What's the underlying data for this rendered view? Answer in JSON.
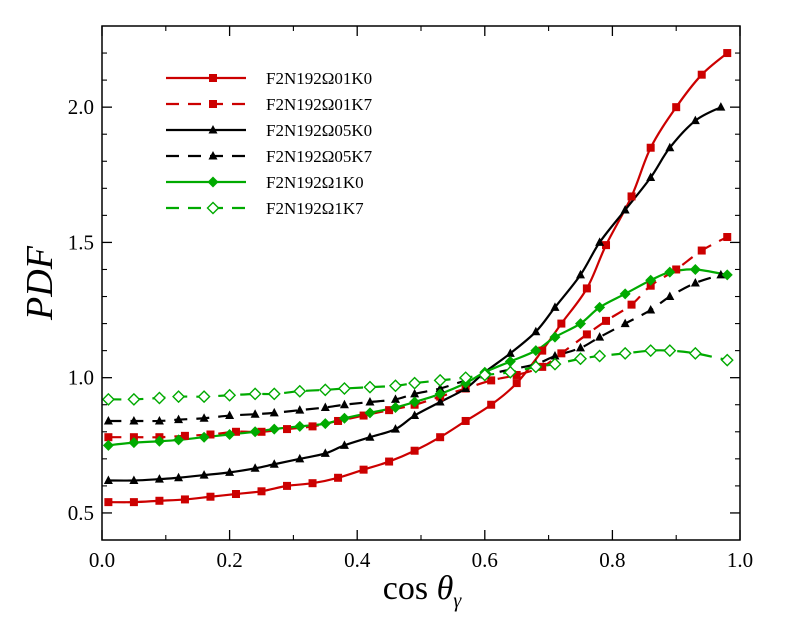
{
  "chart_data": {
    "type": "line",
    "xlabel": "cos θγ",
    "xlabel_main": "cos ",
    "xlabel_theta": "θ",
    "xlabel_sub": "γ",
    "ylabel": "PDF",
    "xlim": [
      0.0,
      1.0
    ],
    "ylim": [
      0.4,
      2.3
    ],
    "x_ticks": [
      0.0,
      0.2,
      0.4,
      0.6,
      0.8,
      1.0
    ],
    "x_tick_labels": [
      "0.0",
      "0.2",
      "0.4",
      "0.6",
      "0.8",
      "1.0"
    ],
    "y_ticks": [
      0.5,
      1.0,
      1.5,
      2.0
    ],
    "y_tick_labels": [
      "0.5",
      "1.0",
      "1.5",
      "2.0"
    ],
    "legend_position": "top-left",
    "series": [
      {
        "name": "F2N192Ω01K0",
        "color": "#cc0000",
        "dash": "solid",
        "marker": "square-filled",
        "x": [
          0.01,
          0.05,
          0.09,
          0.13,
          0.17,
          0.21,
          0.25,
          0.29,
          0.33,
          0.37,
          0.41,
          0.45,
          0.49,
          0.53,
          0.57,
          0.61,
          0.65,
          0.69,
          0.72,
          0.76,
          0.79,
          0.83,
          0.86,
          0.9,
          0.94,
          0.98
        ],
        "values": [
          0.54,
          0.54,
          0.545,
          0.55,
          0.56,
          0.57,
          0.58,
          0.6,
          0.61,
          0.63,
          0.66,
          0.69,
          0.73,
          0.78,
          0.84,
          0.9,
          0.98,
          1.1,
          1.2,
          1.33,
          1.49,
          1.67,
          1.85,
          2.0,
          2.12,
          2.2
        ]
      },
      {
        "name": "F2N192Ω01K7",
        "color": "#cc0000",
        "dash": "dashed",
        "marker": "square-filled",
        "x": [
          0.01,
          0.05,
          0.09,
          0.13,
          0.17,
          0.21,
          0.25,
          0.29,
          0.33,
          0.37,
          0.41,
          0.45,
          0.49,
          0.53,
          0.57,
          0.61,
          0.65,
          0.69,
          0.72,
          0.76,
          0.79,
          0.83,
          0.86,
          0.9,
          0.94,
          0.98
        ],
        "values": [
          0.78,
          0.78,
          0.78,
          0.785,
          0.79,
          0.8,
          0.8,
          0.81,
          0.82,
          0.84,
          0.86,
          0.88,
          0.9,
          0.93,
          0.96,
          0.99,
          1.01,
          1.04,
          1.09,
          1.16,
          1.21,
          1.27,
          1.34,
          1.4,
          1.47,
          1.52
        ]
      },
      {
        "name": "F2N192Ω05K0",
        "color": "#000000",
        "dash": "solid",
        "marker": "triangle-filled",
        "x": [
          0.01,
          0.05,
          0.09,
          0.12,
          0.16,
          0.2,
          0.24,
          0.27,
          0.31,
          0.35,
          0.38,
          0.42,
          0.46,
          0.49,
          0.53,
          0.57,
          0.6,
          0.64,
          0.68,
          0.71,
          0.75,
          0.78,
          0.82,
          0.86,
          0.89,
          0.93,
          0.97
        ],
        "values": [
          0.62,
          0.62,
          0.625,
          0.63,
          0.64,
          0.65,
          0.665,
          0.68,
          0.7,
          0.72,
          0.75,
          0.78,
          0.81,
          0.86,
          0.91,
          0.96,
          1.02,
          1.09,
          1.17,
          1.26,
          1.38,
          1.5,
          1.62,
          1.74,
          1.85,
          1.95,
          2.0
        ]
      },
      {
        "name": "F2N192Ω05K7",
        "color": "#000000",
        "dash": "dashed",
        "marker": "triangle-filled",
        "x": [
          0.01,
          0.05,
          0.09,
          0.12,
          0.16,
          0.2,
          0.24,
          0.27,
          0.31,
          0.35,
          0.38,
          0.42,
          0.46,
          0.49,
          0.53,
          0.57,
          0.6,
          0.64,
          0.68,
          0.71,
          0.75,
          0.78,
          0.82,
          0.86,
          0.89,
          0.93,
          0.97
        ],
        "values": [
          0.84,
          0.84,
          0.84,
          0.845,
          0.85,
          0.86,
          0.865,
          0.87,
          0.88,
          0.89,
          0.9,
          0.91,
          0.92,
          0.94,
          0.96,
          0.99,
          1.01,
          1.03,
          1.05,
          1.08,
          1.11,
          1.15,
          1.2,
          1.25,
          1.3,
          1.35,
          1.38
        ]
      },
      {
        "name": "F2N192Ω1K0",
        "color": "#00aa00",
        "dash": "solid",
        "marker": "diamond-filled",
        "x": [
          0.01,
          0.05,
          0.09,
          0.12,
          0.16,
          0.2,
          0.24,
          0.27,
          0.31,
          0.35,
          0.38,
          0.42,
          0.46,
          0.49,
          0.53,
          0.57,
          0.6,
          0.64,
          0.68,
          0.71,
          0.75,
          0.78,
          0.82,
          0.86,
          0.89,
          0.93,
          0.98
        ],
        "values": [
          0.75,
          0.76,
          0.765,
          0.77,
          0.78,
          0.79,
          0.8,
          0.81,
          0.82,
          0.83,
          0.85,
          0.87,
          0.89,
          0.91,
          0.94,
          0.98,
          1.02,
          1.06,
          1.1,
          1.15,
          1.2,
          1.26,
          1.31,
          1.36,
          1.39,
          1.4,
          1.38
        ]
      },
      {
        "name": "F2N192Ω1K7",
        "color": "#00aa00",
        "dash": "dashed",
        "marker": "diamond-open",
        "x": [
          0.01,
          0.05,
          0.09,
          0.12,
          0.16,
          0.2,
          0.24,
          0.27,
          0.31,
          0.35,
          0.38,
          0.42,
          0.46,
          0.49,
          0.53,
          0.57,
          0.6,
          0.64,
          0.68,
          0.71,
          0.75,
          0.78,
          0.82,
          0.86,
          0.89,
          0.93,
          0.98
        ],
        "values": [
          0.92,
          0.92,
          0.925,
          0.93,
          0.93,
          0.935,
          0.94,
          0.94,
          0.95,
          0.955,
          0.96,
          0.965,
          0.97,
          0.98,
          0.99,
          1.0,
          1.01,
          1.02,
          1.04,
          1.05,
          1.07,
          1.08,
          1.09,
          1.1,
          1.1,
          1.09,
          1.065
        ]
      }
    ]
  }
}
